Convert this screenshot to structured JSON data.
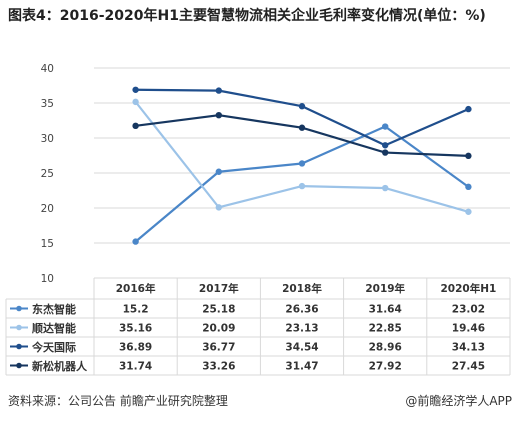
{
  "title": "图表4：2016-2020年H1主要智慧物流相关企业毛利率变化情况(单位：%)",
  "source": "资料来源：公司公告 前瞻产业研究院整理",
  "brand": "@前瞻经济学人APP",
  "chart_data": {
    "type": "line",
    "categories": [
      "2016年",
      "2017年",
      "2018年",
      "2019年",
      "2020年H1"
    ],
    "ylim": [
      10,
      40
    ],
    "yticks": [
      "10",
      "15",
      "20",
      "25",
      "30",
      "35",
      "40"
    ],
    "grid": true,
    "legend": "table-below",
    "series": [
      {
        "name": "东杰智能",
        "color": "#4a86c8",
        "values": [
          15.2,
          25.18,
          26.36,
          31.64,
          23.02
        ],
        "labels": [
          "15.2",
          "25.18",
          "26.36",
          "31.64",
          "23.02"
        ]
      },
      {
        "name": "顺达智能",
        "color": "#9cc3e8",
        "values": [
          35.16,
          20.09,
          23.13,
          22.85,
          19.46
        ],
        "labels": [
          "35.16",
          "20.09",
          "23.13",
          "22.85",
          "19.46"
        ]
      },
      {
        "name": "今天国际",
        "color": "#1f4e8c",
        "values": [
          36.89,
          36.77,
          34.54,
          28.96,
          34.13
        ],
        "labels": [
          "36.89",
          "36.77",
          "34.54",
          "28.96",
          "34.13"
        ]
      },
      {
        "name": "新松机器人",
        "color": "#16365f",
        "values": [
          31.74,
          33.26,
          31.47,
          27.92,
          27.45
        ],
        "labels": [
          "31.74",
          "33.26",
          "31.47",
          "27.92",
          "27.45"
        ]
      }
    ]
  }
}
